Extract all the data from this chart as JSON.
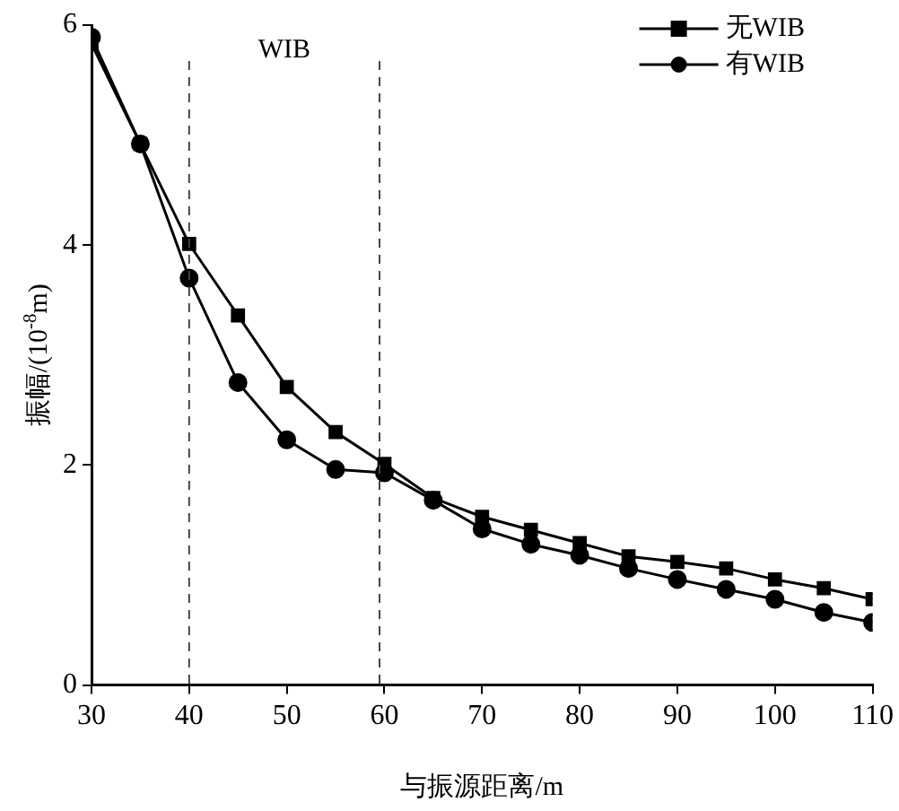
{
  "chart_data": {
    "type": "line",
    "xlabel": "与振源距离/m",
    "ylabel": "振幅/(10$^{-8}$m)",
    "x": [
      30,
      35,
      40,
      45,
      50,
      55,
      60,
      65,
      70,
      75,
      80,
      85,
      90,
      95,
      100,
      105,
      110
    ],
    "xlim": [
      30,
      110
    ],
    "xticks": [
      30,
      40,
      50,
      60,
      70,
      80,
      90,
      100,
      110
    ],
    "ylim": [
      0,
      6
    ],
    "yticks": [
      0,
      2,
      4,
      6
    ],
    "series": [
      {
        "name": "无WIB",
        "color": "#000000",
        "marker": "square",
        "values": [
          5.83,
          4.92,
          4.01,
          3.36,
          2.71,
          2.3,
          2.01,
          1.7,
          1.53,
          1.41,
          1.29,
          1.17,
          1.12,
          1.06,
          0.96,
          0.88,
          0.78
        ]
      },
      {
        "name": "有WIB",
        "color": "#000000",
        "marker": "circle",
        "values": [
          5.89,
          4.92,
          3.7,
          2.75,
          2.23,
          1.96,
          1.93,
          1.68,
          1.42,
          1.28,
          1.18,
          1.06,
          0.96,
          0.87,
          0.78,
          0.66,
          0.57
        ]
      }
    ],
    "ref_lines": [
      {
        "axis": "x",
        "value": 40,
        "color": "#444444",
        "line_style": "dashed"
      },
      {
        "axis": "x",
        "value": 59.5,
        "color": "#444444",
        "line_style": "dashed"
      }
    ],
    "annotations": [
      "WIB"
    ],
    "grid": false,
    "legend": "top right",
    "line_style": "solid"
  }
}
